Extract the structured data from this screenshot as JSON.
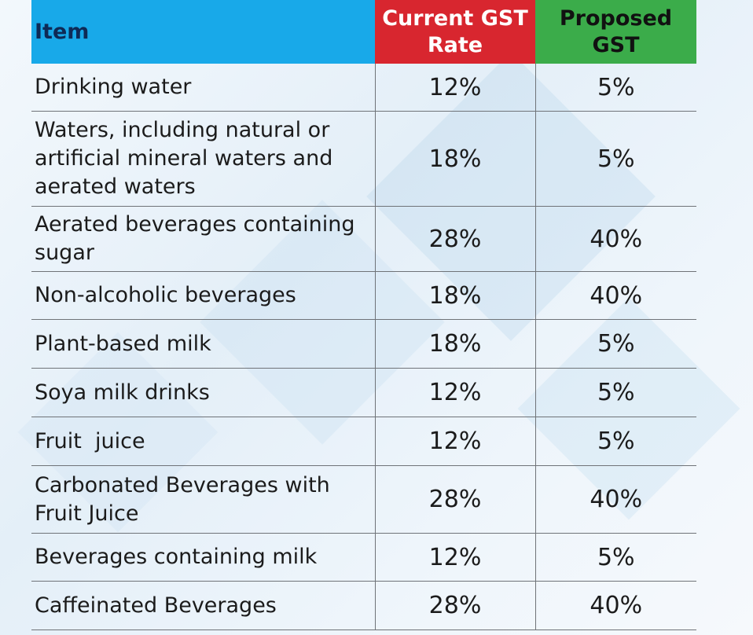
{
  "headers": {
    "item": "Item",
    "current": [
      "Current GST",
      "Rate"
    ],
    "proposed": [
      "Proposed",
      "GST"
    ]
  },
  "colors": {
    "item_header": "#18a9e9",
    "current_header": "#d8262f",
    "proposed_header": "#3bac4a"
  },
  "rows": [
    {
      "item": [
        "Drinking water"
      ],
      "current": "12%",
      "proposed": "5%"
    },
    {
      "item": [
        "Waters, including natural or",
        "artificial mineral waters and",
        "aerated waters"
      ],
      "current": "18%",
      "proposed": "5%"
    },
    {
      "item": [
        "Aerated beverages containing",
        "sugar"
      ],
      "current": "28%",
      "proposed": "40%"
    },
    {
      "item": [
        "Non-alcoholic beverages"
      ],
      "current": "18%",
      "proposed": "40%"
    },
    {
      "item": [
        "Plant-based milk"
      ],
      "current": "18%",
      "proposed": "5%"
    },
    {
      "item": [
        "Soya milk drinks"
      ],
      "current": "12%",
      "proposed": "5%"
    },
    {
      "item": [
        "Fruit  juice"
      ],
      "current": "12%",
      "proposed": "5%"
    },
    {
      "item": [
        "Carbonated Beverages with",
        "Fruit Juice"
      ],
      "current": "28%",
      "proposed": "40%"
    },
    {
      "item": [
        "Beverages containing milk"
      ],
      "current": "12%",
      "proposed": "5%"
    },
    {
      "item": [
        "Caffeinated Beverages"
      ],
      "current": "28%",
      "proposed": "40%"
    }
  ]
}
